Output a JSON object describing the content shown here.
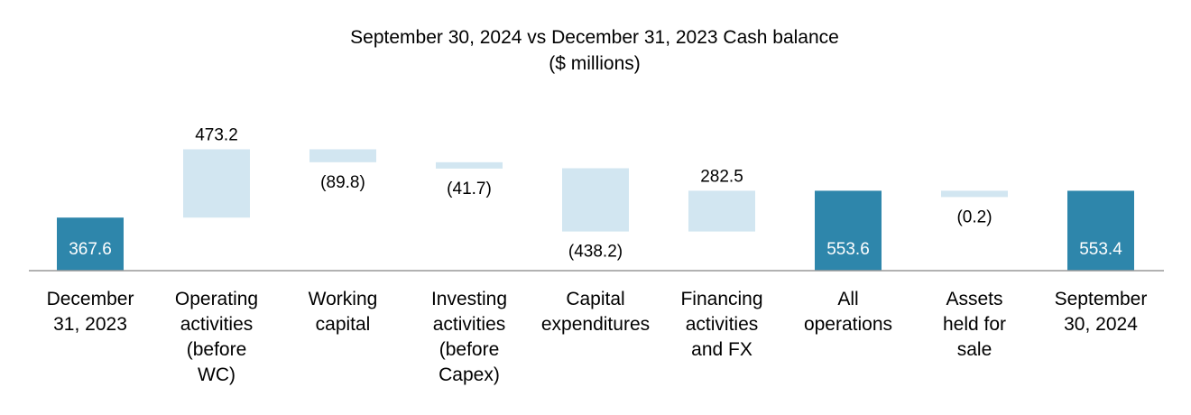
{
  "chart_data": {
    "type": "bar",
    "subtype": "waterfall",
    "title": "September 30, 2024 vs December 31, 2023 Cash  balance",
    "subtitle": "($ millions)",
    "categories": [
      [
        "December",
        "31, 2023"
      ],
      [
        "Operating",
        "activities",
        "(before",
        "WC)"
      ],
      [
        "Working",
        "capital"
      ],
      [
        "Investing",
        "activities",
        "(before",
        "Capex)"
      ],
      [
        "Capital",
        "expenditures"
      ],
      [
        "Financing",
        "activities",
        "and FX"
      ],
      [
        "All",
        "operations"
      ],
      [
        "Assets",
        "held for",
        "sale"
      ],
      [
        "September",
        "30, 2024"
      ]
    ],
    "values": [
      367.6,
      473.2,
      -89.8,
      -41.7,
      -438.2,
      282.5,
      553.6,
      -0.2,
      553.4
    ],
    "value_labels": [
      "367.6",
      "473.2",
      "(89.8)",
      "(41.7)",
      "(438.2)",
      "282.5",
      "553.6",
      "(0.2)",
      "553.4"
    ],
    "bar_kinds": [
      "total",
      "delta",
      "delta",
      "delta",
      "delta",
      "delta",
      "total",
      "delta",
      "total"
    ],
    "colors": {
      "total": "#2e86ab",
      "delta": "#d2e6f1",
      "axis": "#999999",
      "total_label": "#ffffff",
      "delta_label": "#000000"
    },
    "xlabel": "",
    "ylabel": "",
    "grid": false,
    "legend": "none"
  }
}
